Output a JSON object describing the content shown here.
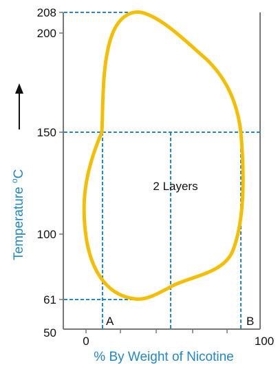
{
  "chart_data": {
    "type": "phase-diagram",
    "xlabel": "% By Weight of Nicotine",
    "ylabel": "Temperature °C",
    "ylabel_main": "Temperature ",
    "ylabel_superscript": "o",
    "ylabel_unit": "C",
    "x_ticks": [
      "0",
      "100"
    ],
    "y_ticks": [
      "50",
      "61",
      "100",
      "150",
      "200",
      "208"
    ],
    "xlim": [
      0,
      100
    ],
    "ylim": [
      50,
      208
    ],
    "region_label": "2 Layers",
    "points": [
      {
        "label": "A",
        "x": 7,
        "y": 61
      },
      {
        "label": "B",
        "x": 83,
        "y": 61
      }
    ],
    "upper_critical_temperature": 208,
    "lower_critical_temperature": 61,
    "reference_temperature": 150,
    "colors": {
      "curve": "#f5be00",
      "guide_lines": "#1e88c8",
      "axis_title": "#1e88c8",
      "axes": "#777777"
    }
  }
}
